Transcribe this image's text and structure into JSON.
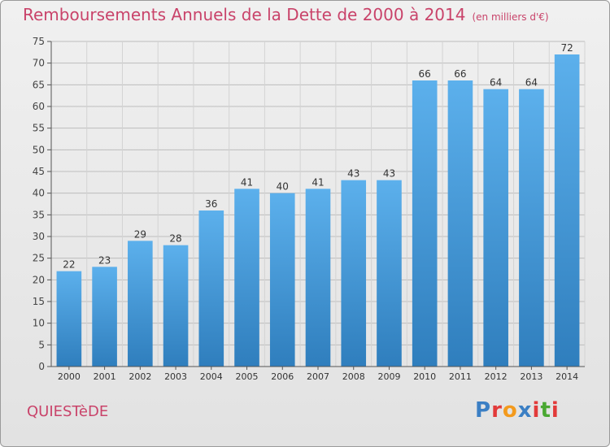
{
  "chart_data": {
    "type": "bar",
    "title": "Remboursements Annuels de la Dette de 2000 à 2014",
    "unit": "(en milliers d'€)",
    "categories": [
      "2000",
      "2001",
      "2002",
      "2003",
      "2004",
      "2005",
      "2006",
      "2007",
      "2008",
      "2009",
      "2010",
      "2011",
      "2012",
      "2013",
      "2014"
    ],
    "values": [
      22,
      23,
      29,
      28,
      36,
      41,
      40,
      41,
      43,
      43,
      66,
      66,
      64,
      64,
      72
    ],
    "ylim": [
      0,
      75
    ],
    "yticks": [
      0,
      5,
      10,
      15,
      20,
      25,
      30,
      35,
      40,
      45,
      50,
      55,
      60,
      65,
      70,
      75
    ],
    "xlabel": "",
    "ylabel": "",
    "grid": true
  },
  "commune": "QUIESTèDE",
  "logo": {
    "text": "Proxiti",
    "letter_colors": [
      "#3b7fc4",
      "#e23a3a",
      "#f39a1d",
      "#3b7fc4",
      "#e23a3a",
      "#4aa832",
      "#e23a3a"
    ]
  },
  "colors": {
    "accent": "#c9436a",
    "bar_top": "#5cb0ec",
    "bar_bottom": "#2f7ebd",
    "grid": "#bdbdbd"
  }
}
